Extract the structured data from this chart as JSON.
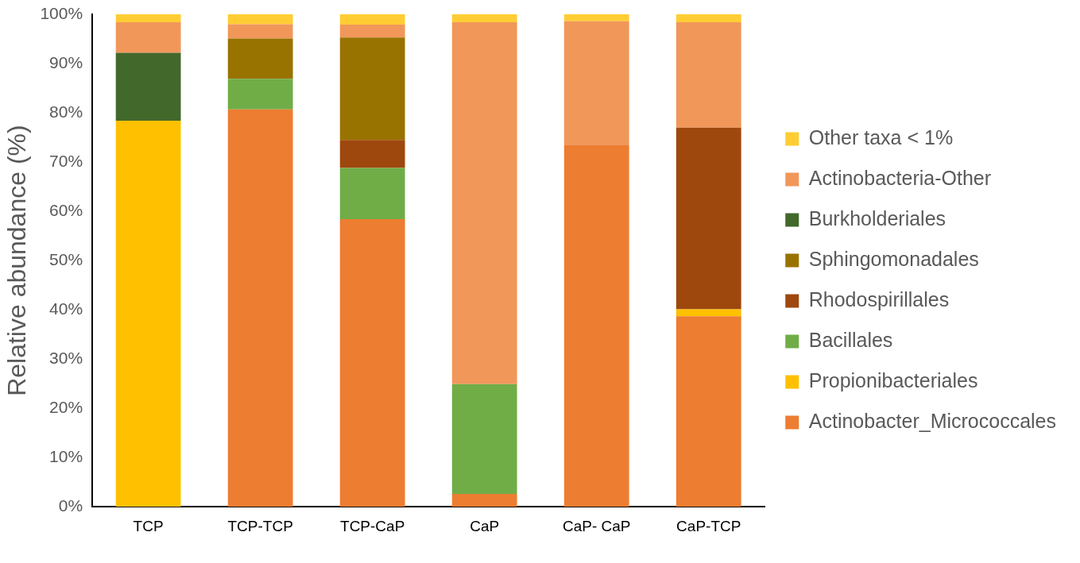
{
  "chart_data": {
    "type": "bar",
    "stacked": true,
    "ylabel": "Relative abundance (%)",
    "categories": [
      "TCP",
      "TCP-TCP",
      "TCP-CaP",
      "CaP",
      "CaP- CaP",
      "CaP-TCP"
    ],
    "series": [
      {
        "name": "Actinobacter_Micrococcales",
        "color": "#ed7d31",
        "values": [
          null,
          80.7,
          58.4,
          2.6,
          73.5,
          38.7
        ]
      },
      {
        "name": "Propionibacteriales",
        "color": "#ffc000",
        "values": [
          78.4,
          null,
          null,
          null,
          null,
          1.4
        ]
      },
      {
        "name": "Bacillales",
        "color": "#70ad47",
        "values": [
          null,
          6.2,
          10.4,
          22.3,
          null,
          null
        ]
      },
      {
        "name": "Rhodospirillales",
        "color": "#9e480e",
        "values": [
          null,
          null,
          5.7,
          null,
          null,
          36.9
        ]
      },
      {
        "name": "Sphingomonadales",
        "color": "#997300",
        "values": [
          null,
          8.2,
          20.8,
          null,
          null,
          null
        ]
      },
      {
        "name": "Burkholderiales",
        "color": "#43682b",
        "values": [
          13.8,
          null,
          null,
          null,
          null,
          null
        ]
      },
      {
        "name": "Actinobacteria-Other",
        "color": "#f1975a",
        "values": [
          6.2,
          2.9,
          2.6,
          73.5,
          25.1,
          21.4
        ]
      },
      {
        "name": "Other taxa < 1%",
        "color": "#ffcd33",
        "values": [
          1.6,
          2.0,
          2.1,
          1.6,
          1.4,
          1.6
        ]
      }
    ],
    "ylim": [
      0,
      100
    ],
    "yticks": [
      {
        "value": 0,
        "label": "0%"
      },
      {
        "value": 10,
        "label": "10%"
      },
      {
        "value": 20,
        "label": "20%"
      },
      {
        "value": 30,
        "label": "30%"
      },
      {
        "value": 40,
        "label": "40%"
      },
      {
        "value": 50,
        "label": "50%"
      },
      {
        "value": 60,
        "label": "60%"
      },
      {
        "value": 70,
        "label": "70%"
      },
      {
        "value": 80,
        "label": "80%"
      },
      {
        "value": 90,
        "label": "90%"
      },
      {
        "value": 100,
        "label": "100%"
      }
    ],
    "grid": false,
    "legend": "right"
  }
}
